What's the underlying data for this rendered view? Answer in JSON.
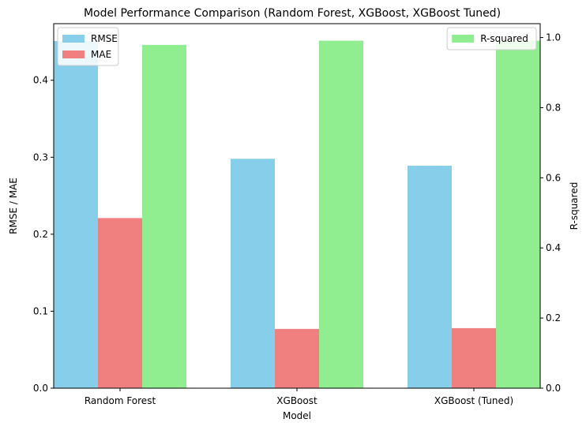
{
  "chart_data": {
    "type": "bar",
    "title": "Model Performance Comparison (Random Forest, XGBoost, XGBoost Tuned)",
    "xlabel": "Model",
    "ylabel": "RMSE / MAE",
    "ylabel_right": "R-squared",
    "categories": [
      "Random Forest",
      "XGBoost",
      "XGBoost (Tuned)"
    ],
    "left_axis": {
      "ylim": [
        0,
        0.4735
      ],
      "ticks": [
        0.0,
        0.1,
        0.2,
        0.3,
        0.4
      ],
      "tick_labels": [
        "0.0",
        "0.1",
        "0.2",
        "0.3",
        "0.4"
      ]
    },
    "right_axis": {
      "ylim": [
        0,
        1.0395
      ],
      "ticks": [
        0.0,
        0.2,
        0.4,
        0.6,
        0.8,
        1.0
      ],
      "tick_labels": [
        "0.0",
        "0.2",
        "0.4",
        "0.6",
        "0.8",
        "1.0"
      ]
    },
    "series": [
      {
        "name": "RMSE",
        "axis": "left",
        "color": "#87ceeb",
        "values": [
          0.451,
          0.298,
          0.289
        ]
      },
      {
        "name": "MAE",
        "axis": "left",
        "color": "#f08080",
        "values": [
          0.221,
          0.077,
          0.078
        ]
      },
      {
        "name": "R-squared",
        "axis": "right",
        "color": "#90ee90",
        "values": [
          0.979,
          0.991,
          0.991
        ]
      }
    ],
    "legend_left": "top-left",
    "legend_right": "top-right",
    "grid": false
  }
}
